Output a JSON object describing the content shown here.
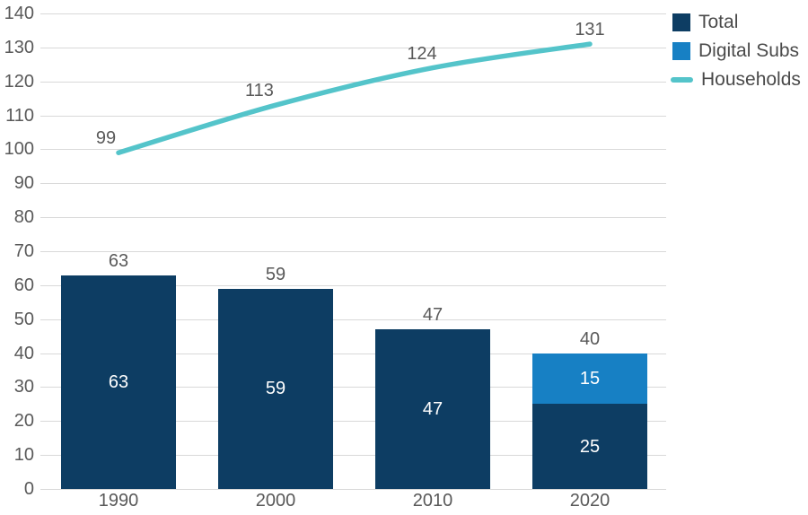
{
  "chart_data": {
    "type": "bar",
    "subtype": "stacked-bars-with-line-overlay",
    "title": "",
    "xlabel": "",
    "ylabel": "",
    "categories": [
      "1990",
      "2000",
      "2010",
      "2020"
    ],
    "series": [
      {
        "name": "Total",
        "type": "bar",
        "color": "#0d3d63",
        "values": [
          63,
          59,
          47,
          25
        ]
      },
      {
        "name": "Digital Subs",
        "type": "bar",
        "color": "#1780c4",
        "values": [
          0,
          0,
          0,
          15
        ]
      },
      {
        "name": "Households",
        "type": "line",
        "color": "#54c4ca",
        "values": [
          99,
          113,
          124,
          131
        ]
      }
    ],
    "bar_total_labels": [
      "63",
      "59",
      "47",
      "40"
    ],
    "segment_labels": [
      [
        "63",
        "59",
        "47",
        "25"
      ],
      [
        "",
        "",
        "",
        "15"
      ]
    ],
    "line_point_labels": [
      "99",
      "113",
      "124",
      "131"
    ],
    "yticks": [
      "0",
      "10",
      "20",
      "30",
      "40",
      "50",
      "60",
      "70",
      "80",
      "90",
      "100",
      "110",
      "120",
      "130",
      "140"
    ],
    "ylim": [
      0,
      140
    ],
    "grid": "horizontal",
    "legend_position": "top-right",
    "legend_entries": [
      "Total",
      "Digital Subs",
      "Households"
    ],
    "colors": {
      "background": "#ffffff",
      "grid": "#d9d9d9",
      "axis_text": "#595959",
      "outside_label_text": "#595959",
      "inside_label_text": "#ffffff",
      "legend_text": "#4a4a4a"
    }
  }
}
